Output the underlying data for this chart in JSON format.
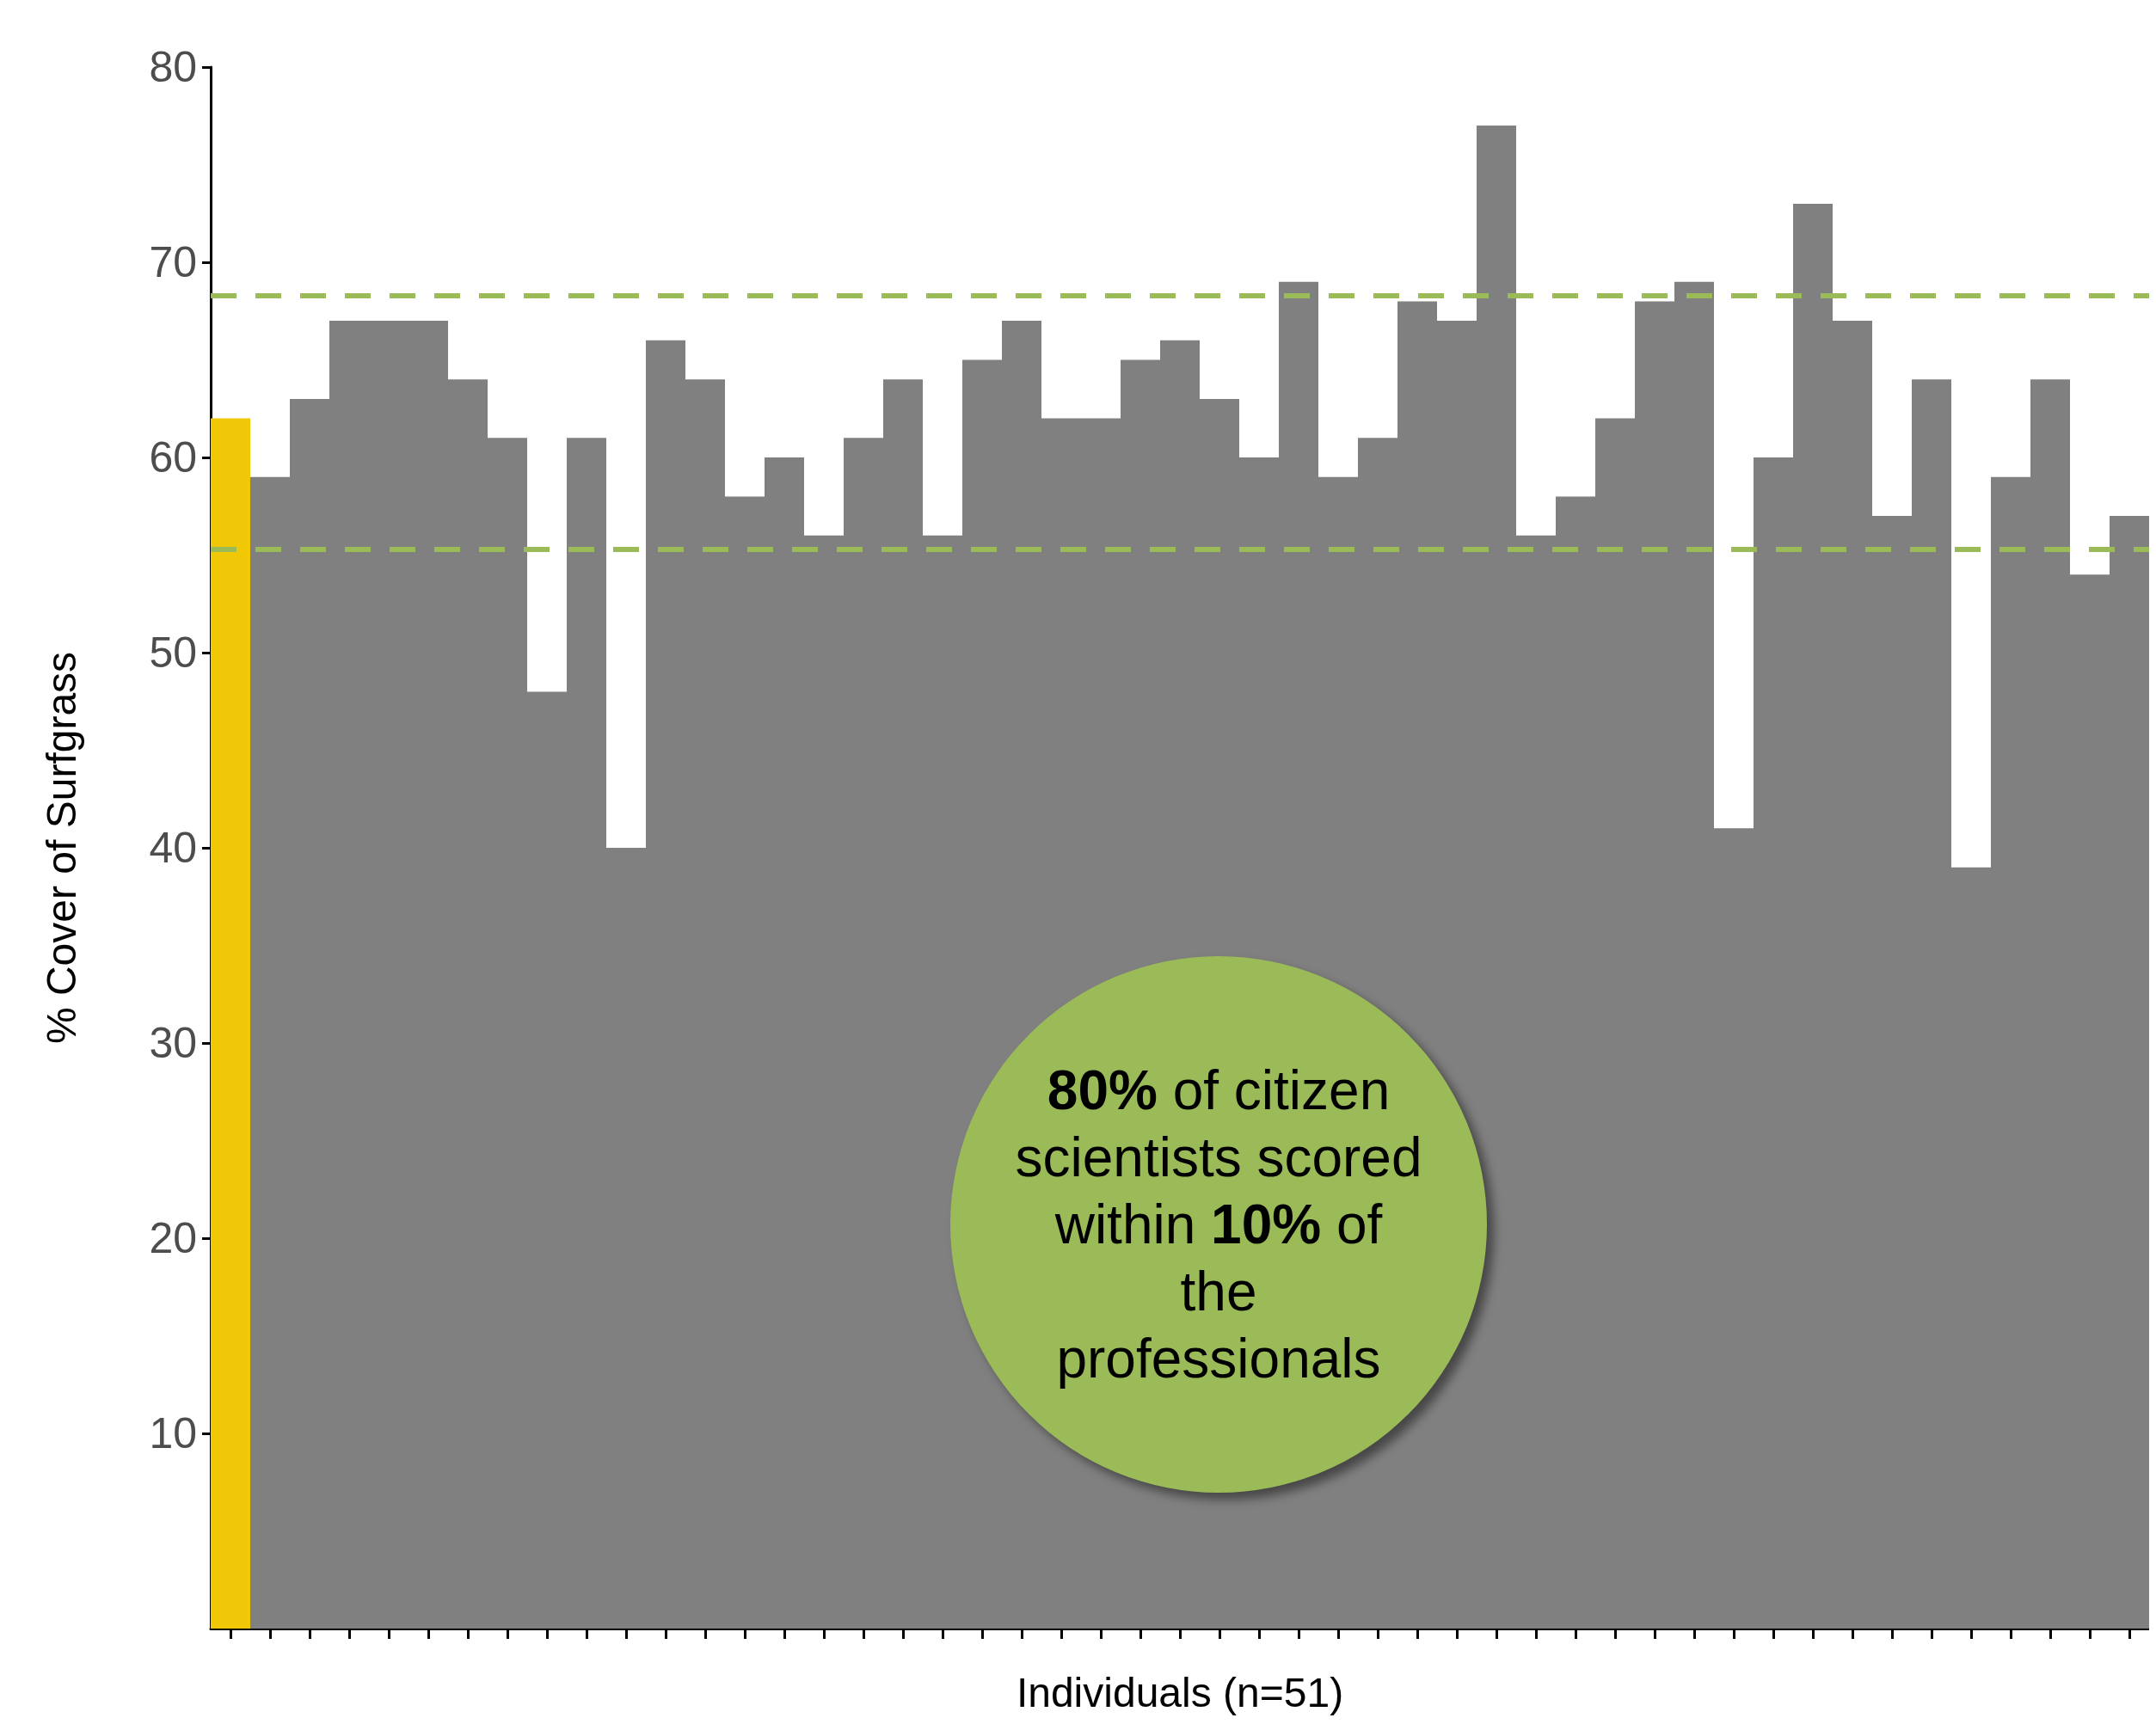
{
  "chart_data": {
    "type": "bar",
    "ylabel": "% Cover of Surfgrass",
    "xlabel": "Individuals (n=51)",
    "categories": [
      null,
      null,
      null,
      null,
      null,
      null,
      null,
      null,
      null,
      null,
      null,
      null,
      null,
      null,
      null,
      null,
      null,
      null,
      null,
      null,
      null,
      null,
      null,
      null,
      null,
      null,
      null,
      null,
      null,
      null,
      null,
      null,
      null,
      null,
      null,
      null,
      null,
      null,
      null,
      null,
      null,
      null,
      null,
      null,
      null,
      null,
      null,
      null,
      null
    ],
    "values": [
      62,
      59,
      63,
      67,
      67,
      67,
      64,
      61,
      48,
      61,
      40,
      66,
      64,
      58,
      60,
      56,
      61,
      64,
      56,
      65,
      67,
      62,
      62,
      65,
      66,
      63,
      60,
      69,
      59,
      61,
      68,
      67,
      77,
      56,
      58,
      62,
      68,
      69,
      41,
      60,
      73,
      67,
      57,
      64,
      39,
      59,
      64,
      54,
      57
    ],
    "colors": [
      "#f0c808",
      "#808080",
      "#808080",
      "#808080",
      "#808080",
      "#808080",
      "#808080",
      "#808080",
      "#808080",
      "#808080",
      "#808080",
      "#808080",
      "#808080",
      "#808080",
      "#808080",
      "#808080",
      "#808080",
      "#808080",
      "#808080",
      "#808080",
      "#808080",
      "#808080",
      "#808080",
      "#808080",
      "#808080",
      "#808080",
      "#808080",
      "#808080",
      "#808080",
      "#808080",
      "#808080",
      "#808080",
      "#808080",
      "#808080",
      "#808080",
      "#808080",
      "#808080",
      "#808080",
      "#808080",
      "#808080",
      "#808080",
      "#808080",
      "#808080",
      "#808080",
      "#808080",
      "#808080",
      "#808080",
      "#808080",
      "#808080"
    ],
    "ylim": [
      0,
      80
    ],
    "yticks": [
      10,
      20,
      30,
      40,
      50,
      60,
      70,
      80
    ],
    "tick_labels": "y",
    "grid": false,
    "ref_lines": [
      {
        "axis": "y",
        "value": 68.3,
        "color": "#9bbb59",
        "line_style": "dashed"
      },
      {
        "axis": "y",
        "value": 55.3,
        "color": "#9bbb59",
        "line_style": "dashed"
      }
    ],
    "annotations": [
      "80% of citizen scientists scored within 10% of the professionals"
    ]
  }
}
